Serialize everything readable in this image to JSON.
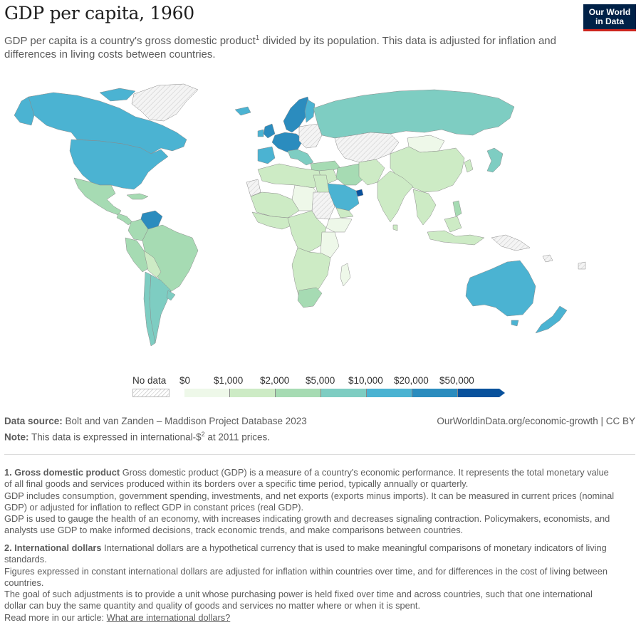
{
  "header": {
    "title": "GDP per capita, 1960",
    "subtitle_before": "GDP per capita is a country's gross domestic product",
    "subtitle_sup": "1",
    "subtitle_after": " divided by its population. This data is adjusted for inflation and differences in living costs between countries.",
    "logo_line1": "Our World",
    "logo_line2": "in Data"
  },
  "legend": {
    "no_data_label": "No data",
    "bins": [
      {
        "label": "$0",
        "color": "#eef8e9"
      },
      {
        "label": "$1,000",
        "color": "#cdebc5"
      },
      {
        "label": "$2,000",
        "color": "#a6dbb3"
      },
      {
        "label": "$5,000",
        "color": "#7ecdc2"
      },
      {
        "label": "$10,000",
        "color": "#4bb3d2"
      },
      {
        "label": "$20,000",
        "color": "#2b8cbe"
      },
      {
        "label": "$50,000",
        "color": "#08519c"
      }
    ]
  },
  "map_colors": {
    "no_data": "#f2f2f2",
    "below_1000": "#eef8e9",
    "b1000_2000": "#cdebc5",
    "b2000_5000": "#a6dbb3",
    "b5000_10000": "#7ecdc2",
    "b10000_20000": "#4bb3d2",
    "b20000_50000": "#2b8cbe",
    "above_50000": "#08519c"
  },
  "footer": {
    "source_label": "Data source:",
    "source_text": " Bolt and van Zanden – Maddison Project Database 2023",
    "note_label": "Note:",
    "note_before": " This data is expressed in international-$",
    "note_sup": "2",
    "note_after": " at 2011 prices.",
    "credit": "OurWorldinData.org/economic-growth  | CC BY"
  },
  "footnotes": {
    "f1_title": "1. Gross domestic product",
    "f1_p1": " Gross domestic product (GDP) is a measure of a country's economic performance. It represents the total monetary value of all final goods and services produced within its borders over a specific time period, typically annually or quarterly.",
    "f1_p2": "GDP includes consumption, government spending, investments, and net exports (exports minus imports). It can be measured in current prices (nominal GDP) or adjusted for inflation to reflect GDP in constant prices (real GDP).",
    "f1_p3": "GDP is used to gauge the health of an economy, with increases indicating growth and decreases signaling contraction. Policymakers, economists, and analysts use GDP to make informed decisions, track economic trends, and make comparisons between countries.",
    "f2_title": "2. International dollars",
    "f2_p1": " International dollars are a hypothetical currency that is used to make meaningful comparisons of monetary indicators of living standards.",
    "f2_p2": "Figures expressed in constant international dollars are adjusted for inflation within countries over time, and for differences in the cost of living between countries.",
    "f2_p3": "The goal of such adjustments is to provide a unit whose purchasing power is held fixed over time and across countries, such that one international dollar can buy the same quantity and quality of goods and services no matter where or when it is spent.",
    "f2_readmore": "Read more in our article: ",
    "f2_link": "What are international dollars?"
  }
}
